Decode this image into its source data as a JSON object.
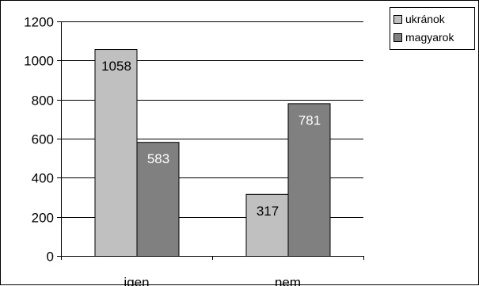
{
  "colors": {
    "ukranok": "#c0c0c0",
    "magyarok": "#808080"
  },
  "chart_data": {
    "type": "bar",
    "categories": [
      "igen",
      "nem"
    ],
    "series": [
      {
        "name": "ukránok",
        "values": [
          1058,
          317
        ],
        "color": "#c0c0c0",
        "label_color": "#000000"
      },
      {
        "name": "magyarok",
        "values": [
          583,
          781
        ],
        "color": "#808080",
        "label_color": "#ffffff"
      }
    ],
    "title": "",
    "xlabel": "",
    "ylabel": "",
    "ylim": [
      0,
      1200
    ],
    "yticks": [
      0,
      200,
      400,
      600,
      800,
      1000,
      1200
    ],
    "grid": true,
    "legend": "top-right"
  }
}
